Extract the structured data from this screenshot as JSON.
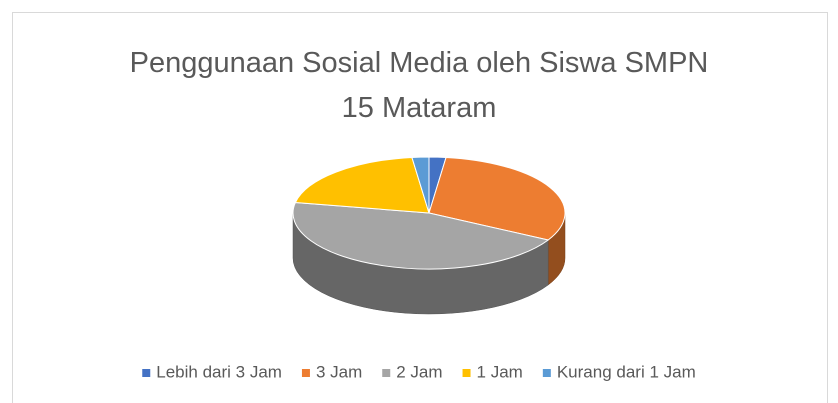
{
  "chart_data": {
    "type": "pie3d",
    "title": "Penggunaan Sosial Media oleh Siswa SMPN 15 Mataram",
    "categories": [
      "Lebih dari 3 Jam",
      "3 Jam",
      "2 Jam",
      "1 Jam",
      "Kurang dari 1 Jam"
    ],
    "values": [
      2,
      31,
      45,
      20,
      2
    ],
    "colors": [
      "#4472c4",
      "#ed7d31",
      "#a5a5a5",
      "#ffc000",
      "#5b9bd5"
    ],
    "legend": "bottom"
  }
}
